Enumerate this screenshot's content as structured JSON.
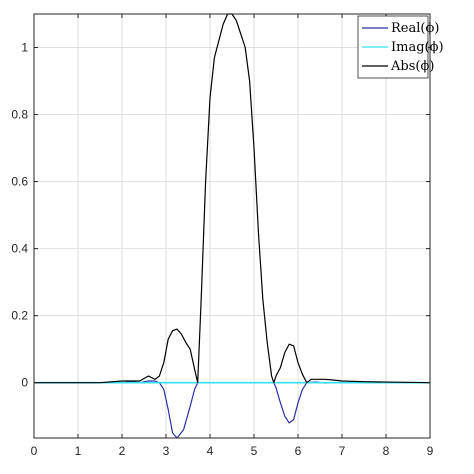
{
  "chart_data": {
    "type": "line",
    "title": "",
    "xlabel": "",
    "ylabel": "",
    "xlim": [
      0,
      9
    ],
    "ylim": [
      -0.165,
      1.1
    ],
    "grid": true,
    "legend_placement": "top-right",
    "x_ticks": [
      0,
      1,
      2,
      3,
      4,
      5,
      6,
      7,
      8,
      9
    ],
    "x_tick_labels": [
      "0",
      "1",
      "2",
      "3",
      "4",
      "5",
      "6",
      "7",
      "8",
      "9"
    ],
    "y_ticks": [
      0,
      0.2,
      0.4,
      0.6,
      0.8,
      1
    ],
    "y_tick_labels": [
      "0",
      "0.2",
      "0.4",
      "0.6",
      "0.8",
      "1"
    ],
    "series": [
      {
        "name": "Real(ϕ)",
        "color": "#2b2fa8",
        "x": [
          0,
          1.5,
          2.0,
          2.2,
          2.4,
          2.6,
          2.75,
          2.85,
          2.95,
          3.05,
          3.15,
          3.25,
          3.4,
          3.55,
          3.65,
          3.72,
          3.8,
          3.9,
          4.0,
          4.1,
          4.2,
          4.3,
          4.4,
          4.5,
          4.6,
          4.7,
          4.8,
          4.9,
          5.0,
          5.1,
          5.2,
          5.3,
          5.4,
          5.45,
          5.5,
          5.6,
          5.7,
          5.8,
          5.9,
          6.0,
          6.1,
          6.2,
          6.4,
          6.6,
          7.0,
          7.5,
          9
        ],
        "y": [
          0,
          0,
          0,
          0.003,
          0,
          0.005,
          0.005,
          0.0,
          -0.02,
          -0.08,
          -0.15,
          -0.165,
          -0.14,
          -0.07,
          -0.02,
          0.0,
          0.0,
          0.0,
          0.0,
          0.0,
          0.0,
          0.0,
          0.0,
          0.0,
          0.0,
          0.0,
          0.0,
          0.0,
          0.0,
          0.0,
          0.0,
          0.0,
          0.0,
          0.0,
          -0.015,
          -0.06,
          -0.1,
          -0.12,
          -0.11,
          -0.06,
          -0.02,
          0.0,
          0.002,
          -0.001,
          0.0,
          0.0,
          0
        ]
      },
      {
        "name": "Imag(ϕ)",
        "color": "#33e0f0",
        "x": [
          0,
          9
        ],
        "y": [
          0,
          0
        ]
      },
      {
        "name": "Abs(ϕ)",
        "color": "#000000",
        "x": [
          0,
          1.5,
          2.0,
          2.2,
          2.4,
          2.6,
          2.75,
          2.85,
          2.95,
          3.05,
          3.15,
          3.25,
          3.35,
          3.45,
          3.55,
          3.65,
          3.72,
          3.8,
          3.9,
          4.0,
          4.1,
          4.2,
          4.3,
          4.4,
          4.5,
          4.6,
          4.7,
          4.8,
          4.9,
          5.0,
          5.1,
          5.2,
          5.3,
          5.4,
          5.45,
          5.5,
          5.6,
          5.7,
          5.8,
          5.9,
          6.0,
          6.1,
          6.2,
          6.3,
          6.4,
          6.6,
          6.8,
          7.0,
          7.5,
          9
        ],
        "y": [
          0,
          0,
          0.005,
          0.005,
          0.005,
          0.02,
          0.01,
          0.02,
          0.06,
          0.13,
          0.155,
          0.16,
          0.145,
          0.12,
          0.1,
          0.04,
          0.0,
          0.25,
          0.6,
          0.85,
          0.97,
          1.02,
          1.07,
          1.1,
          1.1,
          1.08,
          1.04,
          1.0,
          0.9,
          0.7,
          0.45,
          0.25,
          0.12,
          0.02,
          0.0,
          0.02,
          0.045,
          0.09,
          0.115,
          0.11,
          0.06,
          0.025,
          0.0,
          0.01,
          0.01,
          0.01,
          0.008,
          0.005,
          0.003,
          0
        ]
      }
    ]
  }
}
